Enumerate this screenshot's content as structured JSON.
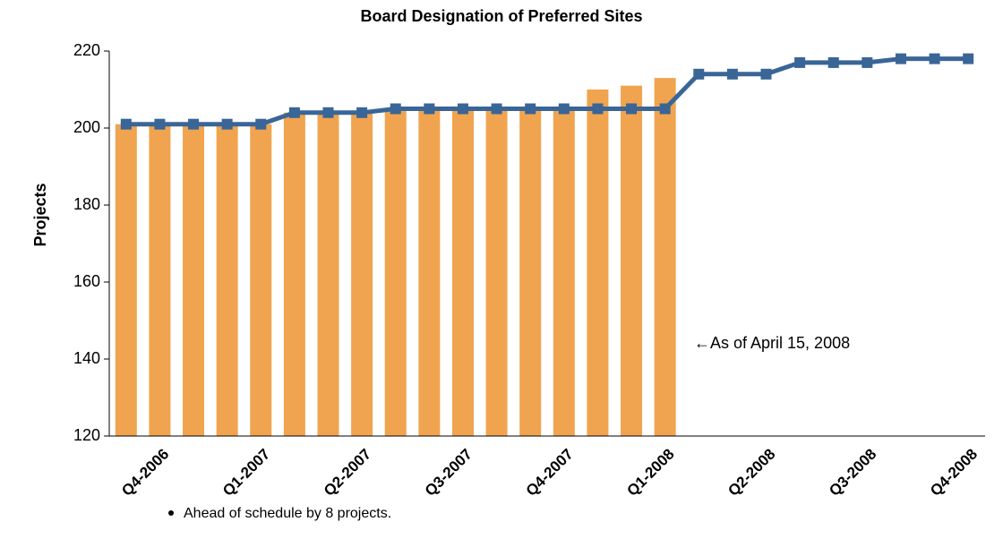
{
  "chart_data": {
    "type": "bar_line",
    "title": "Board Designation of Preferred Sites",
    "y_label": "Projects",
    "annotation": "←As of April 15, 2008",
    "note": "Ahead of schedule by 8 projects.",
    "categories": [
      null,
      "Q4-2006",
      null,
      null,
      "Q1-2007",
      null,
      null,
      "Q2-2007",
      null,
      null,
      "Q3-2007",
      null,
      null,
      "Q4-2007",
      null,
      null,
      "Q1-2008",
      null,
      null,
      "Q2-2008",
      null,
      null,
      "Q3-2008",
      null,
      null,
      "Q4-2008"
    ],
    "series": [
      {
        "type": "bar",
        "color": "#f0a44f",
        "values": [
          201,
          201,
          201,
          201,
          201,
          204,
          204,
          204,
          205,
          205,
          205,
          205,
          205,
          205,
          210,
          211,
          213,
          null,
          null,
          null,
          null,
          null,
          null,
          null,
          null,
          null
        ]
      },
      {
        "type": "line",
        "color": "#3a6597",
        "values": [
          201,
          201,
          201,
          201,
          201,
          204,
          204,
          204,
          205,
          205,
          205,
          205,
          205,
          205,
          205,
          205,
          205,
          214,
          214,
          214,
          217,
          217,
          217,
          218,
          218,
          218
        ]
      }
    ],
    "ylim": [
      120,
      220
    ],
    "yticks": [
      120,
      140,
      160,
      180,
      200,
      220
    ],
    "grid": false
  }
}
